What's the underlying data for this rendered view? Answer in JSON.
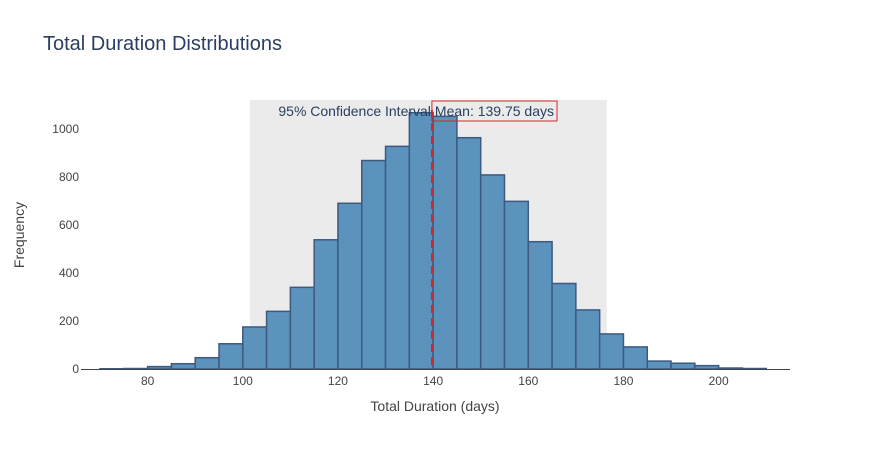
{
  "chart_data": {
    "type": "bar",
    "title": "Total Duration Distributions",
    "xlabel": "Total Duration (days)",
    "ylabel": "Frequency",
    "xlim": [
      66,
      215
    ],
    "ylim": [
      0,
      1120
    ],
    "x_ticks": [
      80,
      100,
      120,
      140,
      160,
      180,
      200
    ],
    "y_ticks": [
      0,
      200,
      400,
      600,
      800,
      1000
    ],
    "bin_width": 5,
    "bins": [
      {
        "x0": 70,
        "count": 1
      },
      {
        "x0": 75,
        "count": 2
      },
      {
        "x0": 80,
        "count": 10
      },
      {
        "x0": 85,
        "count": 22
      },
      {
        "x0": 90,
        "count": 47
      },
      {
        "x0": 95,
        "count": 105
      },
      {
        "x0": 100,
        "count": 175
      },
      {
        "x0": 105,
        "count": 240
      },
      {
        "x0": 110,
        "count": 340
      },
      {
        "x0": 115,
        "count": 538
      },
      {
        "x0": 120,
        "count": 690
      },
      {
        "x0": 125,
        "count": 868
      },
      {
        "x0": 130,
        "count": 927
      },
      {
        "x0": 135,
        "count": 1067
      },
      {
        "x0": 140,
        "count": 1052
      },
      {
        "x0": 145,
        "count": 963
      },
      {
        "x0": 150,
        "count": 808
      },
      {
        "x0": 155,
        "count": 698
      },
      {
        "x0": 160,
        "count": 530
      },
      {
        "x0": 165,
        "count": 356
      },
      {
        "x0": 170,
        "count": 246
      },
      {
        "x0": 175,
        "count": 146
      },
      {
        "x0": 180,
        "count": 92
      },
      {
        "x0": 185,
        "count": 33
      },
      {
        "x0": 190,
        "count": 24
      },
      {
        "x0": 195,
        "count": 14
      },
      {
        "x0": 200,
        "count": 4
      },
      {
        "x0": 205,
        "count": 2
      }
    ],
    "confidence_interval": {
      "x0": 101.5,
      "x1": 176.5,
      "label": "95% Confidence Interval"
    },
    "mean": {
      "value": 139.75,
      "label": "Mean: 139.75 days"
    },
    "grid": false,
    "colors": {
      "bar_fill": "#5b93bd",
      "bar_edge": "#3d5a80",
      "ci_shade": "#ebebeb",
      "mean_line": "#d62728",
      "text": "#2a3f5f"
    }
  }
}
